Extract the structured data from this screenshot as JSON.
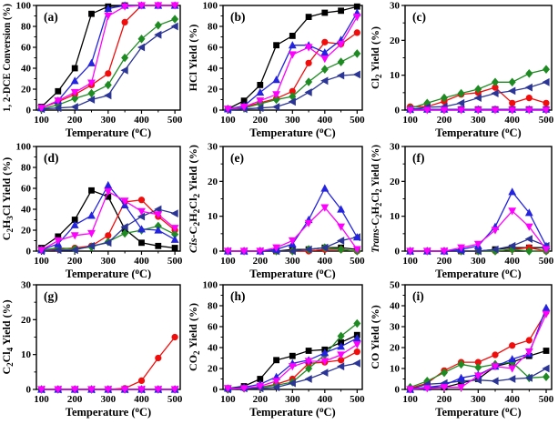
{
  "figure": {
    "background": "#ffffff",
    "axis_color": "#000000",
    "xlabel_plain": "Temperature (oC)",
    "xlabel": [
      {
        "t": "Temperature ("
      },
      {
        "t": "o",
        "sup": true
      },
      {
        "t": "C)"
      }
    ],
    "xticks": [
      100,
      200,
      300,
      400,
      500
    ],
    "styles": {
      "black-square": {
        "color": "#000000",
        "marker": "square"
      },
      "red-circle": {
        "color": "#f20d0d",
        "marker": "circle"
      },
      "green-diamond": {
        "color": "#1e8b22",
        "marker": "diamond"
      },
      "navy-left-triangle": {
        "color": "#2b3596",
        "marker": "triangle-left"
      },
      "blue-up-triangle": {
        "color": "#2424e0",
        "marker": "triangle-up"
      },
      "magenta-down-triangle": {
        "color": "#ff00ff",
        "marker": "triangle-down"
      }
    },
    "draw_order": [
      "black-square",
      "red-circle",
      "green-diamond",
      "navy-left-triangle",
      "blue-up-triangle",
      "magenta-down-triangle"
    ]
  },
  "chart_data": [
    {
      "panel": "(a)",
      "type": "line",
      "ylabel_plain": "1, 2-DCE Conversion (%)",
      "ylabel": [
        {
          "t": "1, 2-DCE Conversion (%)"
        }
      ],
      "ylim": [
        0,
        100
      ],
      "yticks": [
        0,
        20,
        40,
        60,
        80,
        100
      ],
      "x": [
        100,
        150,
        200,
        250,
        300,
        350,
        400,
        450,
        500
      ],
      "series": [
        {
          "name": "black-square",
          "values": [
            3,
            18,
            40,
            92,
            99,
            100,
            100,
            100,
            100
          ]
        },
        {
          "name": "red-circle",
          "values": [
            2,
            8,
            15,
            24,
            35,
            84,
            100,
            100,
            100
          ]
        },
        {
          "name": "green-diamond",
          "values": [
            1,
            5,
            11,
            16,
            24,
            50,
            68,
            81,
            87
          ]
        },
        {
          "name": "navy-left-triangle",
          "values": [
            1,
            2,
            3,
            10,
            14,
            38,
            60,
            72,
            80
          ]
        },
        {
          "name": "blue-up-triangle",
          "values": [
            2,
            9,
            28,
            45,
            97,
            100,
            100,
            100,
            100
          ]
        },
        {
          "name": "magenta-down-triangle",
          "values": [
            2,
            9,
            17,
            26,
            90,
            99,
            100,
            100,
            100
          ]
        }
      ]
    },
    {
      "panel": "(b)",
      "type": "line",
      "ylabel_plain": "HCl Yield (%)",
      "ylabel": [
        {
          "t": "HCl Yield (%)"
        }
      ],
      "ylim": [
        0,
        100
      ],
      "yticks": [
        0,
        20,
        40,
        60,
        80,
        100
      ],
      "x": [
        100,
        150,
        200,
        250,
        300,
        350,
        400,
        450,
        500
      ],
      "series": [
        {
          "name": "black-square",
          "values": [
            1,
            9,
            24,
            62,
            71,
            89,
            93,
            95,
            99
          ]
        },
        {
          "name": "red-circle",
          "values": [
            1,
            3,
            7,
            11,
            18,
            45,
            65,
            63,
            74
          ]
        },
        {
          "name": "green-diamond",
          "values": [
            1,
            2,
            6,
            10,
            13,
            27,
            39,
            46,
            54
          ]
        },
        {
          "name": "navy-left-triangle",
          "values": [
            0,
            1,
            2,
            3,
            8,
            17,
            28,
            33,
            34
          ]
        },
        {
          "name": "blue-up-triangle",
          "values": [
            1,
            4,
            17,
            29,
            62,
            62,
            55,
            67,
            93
          ]
        },
        {
          "name": "magenta-down-triangle",
          "values": [
            1,
            3,
            9,
            15,
            53,
            60,
            49,
            63,
            89
          ]
        }
      ]
    },
    {
      "panel": "(c)",
      "type": "line",
      "ylabel_plain": "Cl2 Yield (%)",
      "ylabel": [
        {
          "t": "Cl"
        },
        {
          "t": "2",
          "sub": true
        },
        {
          "t": " Yield (%)"
        }
      ],
      "ylim": [
        0,
        30
      ],
      "yticks": [
        0,
        10,
        20,
        30
      ],
      "x": [
        100,
        150,
        200,
        250,
        300,
        350,
        400,
        450,
        500
      ],
      "series": [
        {
          "name": "black-square",
          "values": [
            0.3,
            0.2,
            0.2,
            0.2,
            0.2,
            0.2,
            0.2,
            0.2,
            0.2
          ]
        },
        {
          "name": "red-circle",
          "values": [
            1,
            1,
            2.5,
            4.5,
            5,
            6.5,
            2,
            3.5,
            2
          ]
        },
        {
          "name": "green-diamond",
          "values": [
            0.5,
            2,
            3.5,
            4.8,
            6,
            8,
            8,
            10.5,
            11.7
          ]
        },
        {
          "name": "navy-left-triangle",
          "values": [
            0.2,
            0.8,
            1,
            2,
            3.5,
            4.8,
            5.5,
            6.5,
            8
          ]
        },
        {
          "name": "blue-up-triangle",
          "values": [
            0.2,
            0.2,
            0.2,
            0.2,
            0.2,
            0.2,
            0.2,
            0.2,
            0.2
          ]
        },
        {
          "name": "magenta-down-triangle",
          "values": [
            0,
            0,
            0,
            0,
            0,
            0,
            0,
            0,
            0
          ]
        }
      ]
    },
    {
      "panel": "(d)",
      "type": "line",
      "ylabel_plain": "C2H3Cl Yield (%)",
      "ylabel": [
        {
          "t": "C"
        },
        {
          "t": "2",
          "sub": true
        },
        {
          "t": "H"
        },
        {
          "t": "3",
          "sub": true
        },
        {
          "t": "Cl Yield (%)"
        }
      ],
      "ylim": [
        0,
        100
      ],
      "yticks": [
        0,
        20,
        40,
        60,
        80,
        100
      ],
      "x": [
        100,
        150,
        200,
        250,
        300,
        350,
        400,
        450,
        500
      ],
      "series": [
        {
          "name": "black-square",
          "values": [
            3,
            14,
            30,
            58,
            52,
            21,
            8,
            5,
            3
          ]
        },
        {
          "name": "red-circle",
          "values": [
            1,
            2,
            3,
            5,
            15,
            47,
            49,
            33,
            20
          ]
        },
        {
          "name": "green-diamond",
          "values": [
            1,
            3,
            2,
            4,
            9,
            17,
            20,
            24,
            16
          ]
        },
        {
          "name": "navy-left-triangle",
          "values": [
            0,
            1,
            1,
            5,
            8,
            23,
            33,
            40,
            36
          ]
        },
        {
          "name": "blue-up-triangle",
          "values": [
            1,
            7,
            25,
            34,
            63,
            44,
            21,
            20,
            11
          ]
        },
        {
          "name": "magenta-down-triangle",
          "values": [
            1,
            10,
            15,
            17,
            57,
            48,
            38,
            35,
            22
          ]
        }
      ]
    },
    {
      "panel": "(e)",
      "type": "line",
      "ylabel_plain": "Cis-C2H2Cl2 Yield (%)",
      "ylabel": [
        {
          "t": "Cis-",
          "italic": true
        },
        {
          "t": "C"
        },
        {
          "t": "2",
          "sub": true
        },
        {
          "t": "H"
        },
        {
          "t": "2",
          "sub": true
        },
        {
          "t": "Cl"
        },
        {
          "t": "2",
          "sub": true
        },
        {
          "t": " Yield (%)"
        }
      ],
      "ylim": [
        0,
        30
      ],
      "yticks": [
        0,
        10,
        20,
        30
      ],
      "x": [
        100,
        150,
        200,
        250,
        300,
        350,
        400,
        450,
        500
      ],
      "series": [
        {
          "name": "black-square",
          "values": [
            0,
            0,
            0,
            0,
            0.5,
            0.5,
            1,
            1,
            0.5
          ]
        },
        {
          "name": "red-circle",
          "values": [
            0,
            0,
            0,
            0,
            0,
            0,
            0.5,
            0.5,
            0
          ]
        },
        {
          "name": "green-diamond",
          "values": [
            0,
            0,
            0,
            0,
            0,
            0.5,
            1,
            0.5,
            0
          ]
        },
        {
          "name": "navy-left-triangle",
          "values": [
            0,
            0,
            0,
            0,
            0,
            0.5,
            1,
            3,
            4
          ]
        },
        {
          "name": "blue-up-triangle",
          "values": [
            0,
            0,
            0,
            0.5,
            2,
            9,
            18,
            12,
            4
          ]
        },
        {
          "name": "magenta-down-triangle",
          "values": [
            0,
            0,
            0,
            1,
            3,
            8,
            12.5,
            7,
            0.5
          ]
        }
      ]
    },
    {
      "panel": "(f)",
      "type": "line",
      "ylabel_plain": "Trans-C2H2Cl2 Yield (%)",
      "ylabel": [
        {
          "t": "Trans-",
          "italic": true
        },
        {
          "t": "C"
        },
        {
          "t": "2",
          "sub": true
        },
        {
          "t": "H"
        },
        {
          "t": "2",
          "sub": true
        },
        {
          "t": "Cl"
        },
        {
          "t": "2",
          "sub": true
        },
        {
          "t": " Yield (%)"
        }
      ],
      "ylim": [
        0,
        30
      ],
      "yticks": [
        0,
        10,
        20,
        30
      ],
      "x": [
        100,
        150,
        200,
        250,
        300,
        350,
        400,
        450,
        500
      ],
      "series": [
        {
          "name": "black-square",
          "values": [
            0,
            0,
            0,
            0,
            0,
            0.5,
            1,
            1,
            1
          ]
        },
        {
          "name": "red-circle",
          "values": [
            0,
            0,
            0,
            0,
            0,
            0,
            0.5,
            1,
            0
          ]
        },
        {
          "name": "green-diamond",
          "values": [
            0,
            0,
            0,
            0,
            0,
            0,
            0.5,
            0,
            0
          ]
        },
        {
          "name": "navy-left-triangle",
          "values": [
            0,
            0,
            0,
            0,
            0,
            0.5,
            1.5,
            3.5,
            1.5
          ]
        },
        {
          "name": "blue-up-triangle",
          "values": [
            0,
            0,
            0,
            0.5,
            1.5,
            7,
            17,
            11,
            1.5
          ]
        },
        {
          "name": "magenta-down-triangle",
          "values": [
            0,
            0,
            0,
            1,
            2,
            6,
            11.5,
            7,
            0.5
          ]
        }
      ]
    },
    {
      "panel": "(g)",
      "type": "line",
      "ylabel_plain": "C2Cl4 Yield (%)",
      "ylabel": [
        {
          "t": "C"
        },
        {
          "t": "2",
          "sub": true
        },
        {
          "t": "Cl"
        },
        {
          "t": "4",
          "sub": true
        },
        {
          "t": " Yield (%)"
        }
      ],
      "ylim": [
        0,
        30
      ],
      "yticks": [
        0,
        10,
        20,
        30
      ],
      "x": [
        100,
        150,
        200,
        250,
        300,
        350,
        400,
        450,
        500
      ],
      "series": [
        {
          "name": "black-square",
          "values": [
            0,
            0,
            0,
            0,
            0,
            0,
            0,
            0,
            0
          ]
        },
        {
          "name": "red-circle",
          "values": [
            0,
            0,
            0,
            0,
            0,
            0.3,
            2.5,
            9,
            15
          ]
        },
        {
          "name": "green-diamond",
          "values": [
            0,
            0,
            0,
            0,
            0,
            0,
            0,
            0,
            0
          ]
        },
        {
          "name": "navy-left-triangle",
          "values": [
            0,
            0,
            0,
            0,
            0,
            0,
            0,
            0,
            0
          ]
        },
        {
          "name": "blue-up-triangle",
          "values": [
            0,
            0,
            0,
            0,
            0,
            0,
            0,
            0,
            0
          ]
        },
        {
          "name": "magenta-down-triangle",
          "values": [
            0,
            0,
            0,
            0,
            0,
            0,
            0,
            0,
            0
          ]
        }
      ]
    },
    {
      "panel": "(h)",
      "type": "line",
      "ylabel_plain": "CO2 Yield (%)",
      "ylabel": [
        {
          "t": "CO"
        },
        {
          "t": "2",
          "sub": true
        },
        {
          "t": " Yield (%)"
        }
      ],
      "ylim": [
        0,
        100
      ],
      "yticks": [
        0,
        20,
        40,
        60,
        80,
        100
      ],
      "x": [
        100,
        150,
        200,
        250,
        300,
        350,
        400,
        450,
        500
      ],
      "series": [
        {
          "name": "black-square",
          "values": [
            1,
            3,
            10,
            28,
            32,
            37,
            38,
            45,
            52
          ]
        },
        {
          "name": "red-circle",
          "values": [
            0,
            1,
            2,
            5,
            10,
            25,
            26,
            28,
            36
          ]
        },
        {
          "name": "green-diamond",
          "values": [
            0,
            1,
            2,
            4,
            7,
            20,
            33,
            51,
            63
          ]
        },
        {
          "name": "navy-left-triangle",
          "values": [
            0,
            1,
            1,
            2,
            6,
            10,
            16,
            22,
            25
          ]
        },
        {
          "name": "blue-up-triangle",
          "values": [
            1,
            2,
            5,
            12,
            25,
            28,
            35,
            41,
            49
          ]
        },
        {
          "name": "magenta-down-triangle",
          "values": [
            1,
            1,
            3,
            8,
            22,
            27,
            27,
            33,
            43
          ]
        }
      ]
    },
    {
      "panel": "(i)",
      "type": "line",
      "ylabel_plain": "CO Yield (%)",
      "ylabel": [
        {
          "t": "CO Yield (%)"
        }
      ],
      "ylim": [
        0,
        50
      ],
      "yticks": [
        0,
        10,
        20,
        30,
        40,
        50
      ],
      "x": [
        100,
        150,
        200,
        250,
        300,
        350,
        400,
        450,
        500
      ],
      "series": [
        {
          "name": "black-square",
          "values": [
            0,
            1,
            1,
            3,
            5,
            11,
            13,
            16,
            18.5
          ]
        },
        {
          "name": "red-circle",
          "values": [
            0.5,
            3,
            9,
            13,
            13,
            16.5,
            21,
            23.5,
            37
          ]
        },
        {
          "name": "green-diamond",
          "values": [
            1,
            4,
            8,
            12,
            10.5,
            12,
            13,
            5.5,
            6
          ]
        },
        {
          "name": "navy-left-triangle",
          "values": [
            0,
            2.5,
            3,
            4,
            4.5,
            4,
            5,
            5.5,
            10
          ]
        },
        {
          "name": "blue-up-triangle",
          "values": [
            0,
            1,
            2,
            5.5,
            7,
            11,
            14.5,
            17,
            39
          ]
        },
        {
          "name": "magenta-down-triangle",
          "values": [
            0,
            0.5,
            1,
            1,
            6.5,
            11,
            10,
            18,
            36
          ]
        }
      ]
    }
  ]
}
